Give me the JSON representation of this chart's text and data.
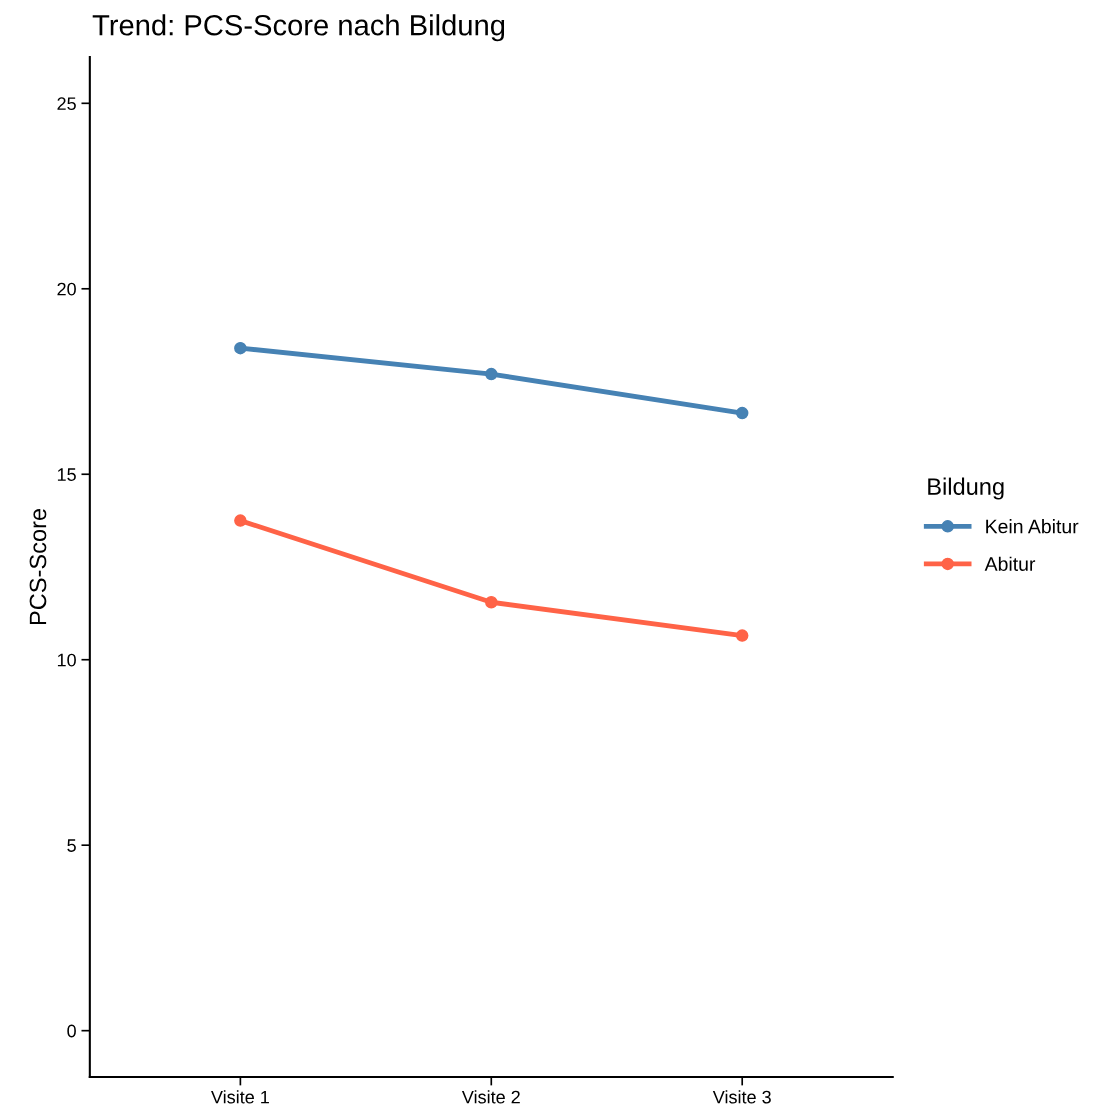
{
  "chart_data": {
    "type": "line",
    "title": "Trend: PCS-Score nach Bildung",
    "ylabel": "PCS-Score",
    "legend_title": "Bildung",
    "categories": [
      "Visite 1",
      "Visite 2",
      "Visite 3"
    ],
    "series": [
      {
        "name": "Kein Abitur",
        "color": "#4682b4",
        "values": [
          18.4,
          17.7,
          16.65
        ]
      },
      {
        "name": "Abitur",
        "color": "#ff6347",
        "values": [
          13.75,
          11.55,
          10.65
        ]
      }
    ],
    "ylim": [
      -1.25,
      26.25
    ],
    "yticks": [
      0,
      5,
      10,
      15,
      20,
      25
    ],
    "grid": false,
    "legend": "right",
    "marker": "circle",
    "line_style": "solid"
  }
}
